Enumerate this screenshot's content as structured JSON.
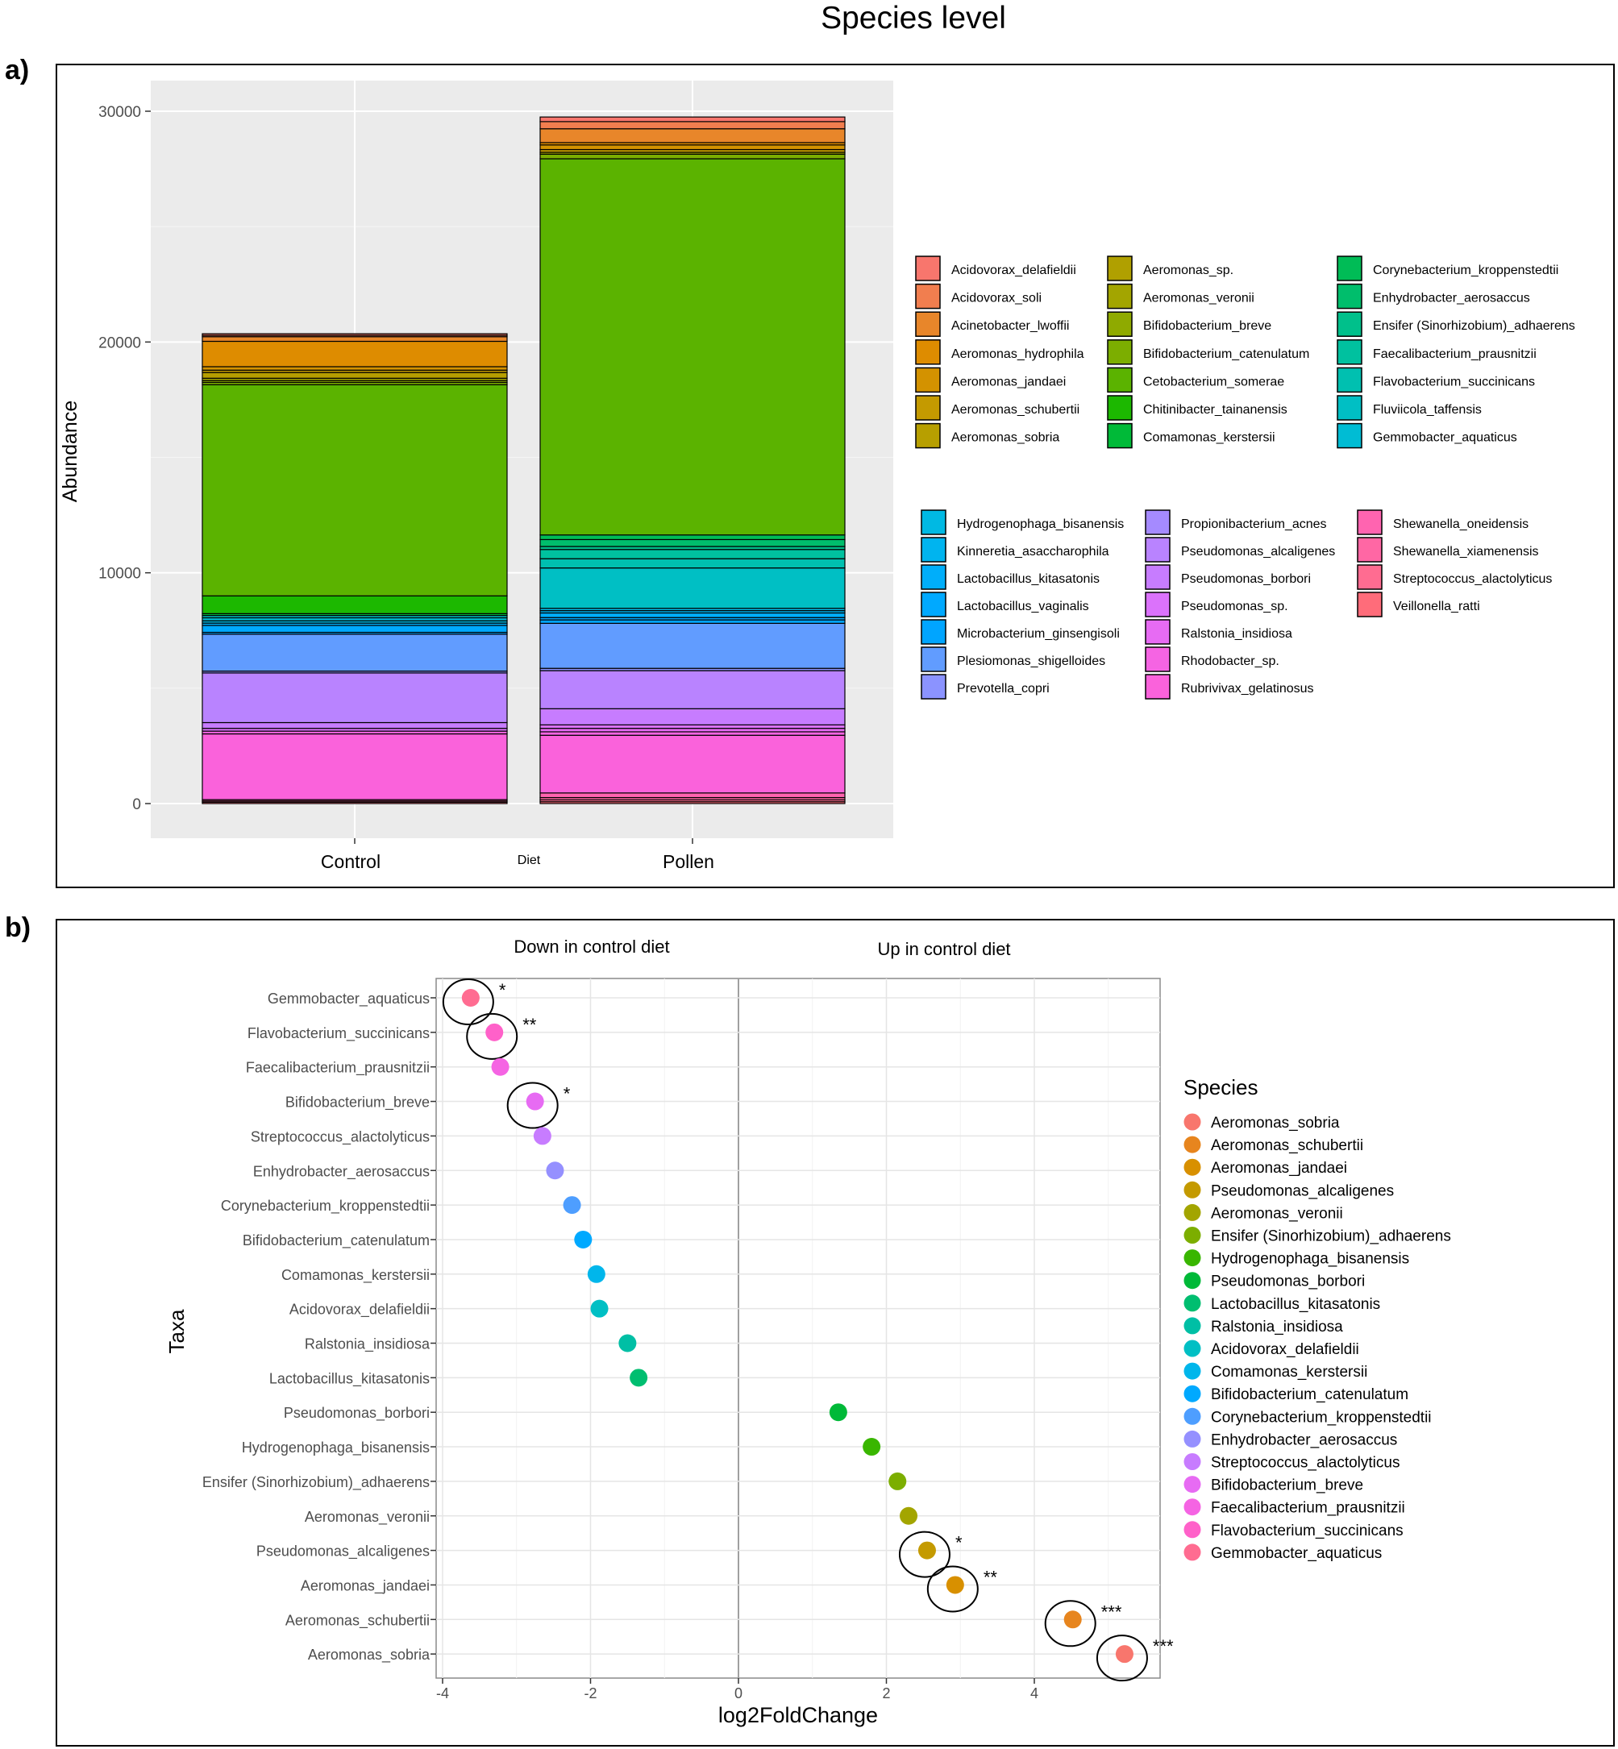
{
  "figure": {
    "title": "Species level",
    "panel_a_label": "a)",
    "panel_b_label": "b)"
  },
  "chart_data": [
    {
      "type": "bar",
      "stacked": true,
      "panel": "a",
      "title": "",
      "xlabel": "Diet",
      "ylabel": "Abundance",
      "ylim": [
        0,
        31000
      ],
      "yticks": [
        "0",
        "10000",
        "20000",
        "30000"
      ],
      "categories": [
        "Control",
        "Pollen"
      ],
      "species": [
        {
          "name": "Acidovorax_delafieldii",
          "color": "#F8766D"
        },
        {
          "name": "Acidovorax_soli",
          "color": "#F17E4F"
        },
        {
          "name": "Acinetobacter_lwoffii",
          "color": "#E8862A"
        },
        {
          "name": "Aeromonas_hydrophila",
          "color": "#DE8C00"
        },
        {
          "name": "Aeromonas_jandaei",
          "color": "#D39200"
        },
        {
          "name": "Aeromonas_schubertii",
          "color": "#C49A00"
        },
        {
          "name": "Aeromonas_sobria",
          "color": "#B79F00"
        },
        {
          "name": "Aeromonas_sp.",
          "color": "#B0A000"
        },
        {
          "name": "Aeromonas_veronii",
          "color": "#A3A500"
        },
        {
          "name": "Bifidobacterium_breve",
          "color": "#8FAA00"
        },
        {
          "name": "Bifidobacterium_catenulatum",
          "color": "#7CAE00"
        },
        {
          "name": "Cetobacterium_somerae",
          "color": "#5BB300"
        },
        {
          "name": "Chitinibacter_tainanensis",
          "color": "#1CB800"
        },
        {
          "name": "Comamonas_kerstersii",
          "color": "#00BA38"
        },
        {
          "name": "Corynebacterium_kroppenstedtii",
          "color": "#00BC56"
        },
        {
          "name": "Enhydrobacter_aerosaccus",
          "color": "#00BE6C"
        },
        {
          "name": "Ensifer (Sinorhizobium)_adhaerens",
          "color": "#00C08B"
        },
        {
          "name": "Faecalibacterium_prausnitzii",
          "color": "#00C19F"
        },
        {
          "name": "Flavobacterium_succinicans",
          "color": "#00C0B0"
        },
        {
          "name": "Fluviicola_taffensis",
          "color": "#00BFC4"
        },
        {
          "name": "Gemmobacter_aquaticus",
          "color": "#00BCD4"
        },
        {
          "name": "Hydrogenophaga_bisanensis",
          "color": "#00B9E3"
        },
        {
          "name": "Kinneretia_asaccharophila",
          "color": "#00B4EF"
        },
        {
          "name": "Lactobacillus_kitasatonis",
          "color": "#00AEFA"
        },
        {
          "name": "Lactobacillus_vaginalis",
          "color": "#00A9FF"
        },
        {
          "name": "Microbacterium_ginsengisoli",
          "color": "#00A5FF"
        },
        {
          "name": "Plesiomonas_shigelloides",
          "color": "#619CFF"
        },
        {
          "name": "Prevotella_copri",
          "color": "#8B93FF"
        },
        {
          "name": "Propionibacterium_acnes",
          "color": "#A58AFF"
        },
        {
          "name": "Pseudomonas_alcaligenes",
          "color": "#B983FF"
        },
        {
          "name": "Pseudomonas_borbori",
          "color": "#C77CFF"
        },
        {
          "name": "Pseudomonas_sp.",
          "color": "#DB72FB"
        },
        {
          "name": "Ralstonia_insidiosa",
          "color": "#E76BF3"
        },
        {
          "name": "Rhodobacter_sp.",
          "color": "#F564E3"
        },
        {
          "name": "Rubrivivax_gelatinosus",
          "color": "#FA62DB"
        },
        {
          "name": "Shewanella_oneidensis",
          "color": "#FF64B0"
        },
        {
          "name": "Shewanella_xiamenensis",
          "color": "#FF67A4"
        },
        {
          "name": "Streptococcus_alactolyticus",
          "color": "#FF6C91"
        },
        {
          "name": "Veillonella_ratti",
          "color": "#FF6C7A"
        }
      ],
      "series": [
        {
          "name": "Control",
          "segments": [
            {
              "species": "Veillonella_ratti",
              "value": 60
            },
            {
              "species": "Streptococcus_alactolyticus",
              "value": 50
            },
            {
              "species": "Shewanella_xiamenensis",
              "value": 60
            },
            {
              "species": "Rubrivivax_gelatinosus",
              "value": 2850
            },
            {
              "species": "Rhodobacter_sp.",
              "value": 120
            },
            {
              "species": "Pseudomonas_sp.",
              "value": 120
            },
            {
              "species": "Pseudomonas_borbori",
              "value": 250
            },
            {
              "species": "Pseudomonas_alcaligenes",
              "value": 2150
            },
            {
              "species": "Prevotella_copri",
              "value": 80
            },
            {
              "species": "Plesiomonas_shigelloides",
              "value": 1600
            },
            {
              "species": "Microbacterium_ginsengisoli",
              "value": 80
            },
            {
              "species": "Lactobacillus_vaginalis",
              "value": 300
            },
            {
              "species": "Lactobacillus_kitasatonis",
              "value": 100
            },
            {
              "species": "Hydrogenophaga_bisanensis",
              "value": 100
            },
            {
              "species": "Gemmobacter_aquaticus",
              "value": 130
            },
            {
              "species": "Fluviicola_taffensis",
              "value": 100
            },
            {
              "species": "Comamonas_kerstersii",
              "value": 80
            },
            {
              "species": "Chitinibacter_tainanensis",
              "value": 770
            },
            {
              "species": "Cetobacterium_somerae",
              "value": 9150
            },
            {
              "species": "Bifidobacterium_catenulatum",
              "value": 100
            },
            {
              "species": "Bifidobacterium_breve",
              "value": 80
            },
            {
              "species": "Aeromonas_veronii",
              "value": 100
            },
            {
              "species": "Aeromonas_sobria",
              "value": 250
            },
            {
              "species": "Aeromonas_schubertii",
              "value": 100
            },
            {
              "species": "Aeromonas_jandaei",
              "value": 150
            },
            {
              "species": "Aeromonas_hydrophila",
              "value": 1100
            },
            {
              "species": "Acinetobacter_lwoffii",
              "value": 200
            },
            {
              "species": "Acidovorax_soli",
              "value": 60
            },
            {
              "species": "Acidovorax_delafieldii",
              "value": 70
            }
          ]
        },
        {
          "name": "Pollen",
          "segments": [
            {
              "species": "Veillonella_ratti",
              "value": 80
            },
            {
              "species": "Streptococcus_alactolyticus",
              "value": 80
            },
            {
              "species": "Shewanella_xiamenensis",
              "value": 100
            },
            {
              "species": "Shewanella_oneidensis",
              "value": 200
            },
            {
              "species": "Rubrivivax_gelatinosus",
              "value": 2500
            },
            {
              "species": "Rhodobacter_sp.",
              "value": 150
            },
            {
              "species": "Ralstonia_insidiosa",
              "value": 150
            },
            {
              "species": "Pseudomonas_sp.",
              "value": 150
            },
            {
              "species": "Pseudomonas_borbori",
              "value": 700
            },
            {
              "species": "Pseudomonas_alcaligenes",
              "value": 1650
            },
            {
              "species": "Prevotella_copri",
              "value": 100
            },
            {
              "species": "Plesiomonas_shigelloides",
              "value": 1950
            },
            {
              "species": "Microbacterium_ginsengisoli",
              "value": 150
            },
            {
              "species": "Lactobacillus_vaginalis",
              "value": 100
            },
            {
              "species": "Lactobacillus_kitasatonis",
              "value": 200
            },
            {
              "species": "Kinneretia_asaccharophila",
              "value": 100
            },
            {
              "species": "Hydrogenophaga_bisanensis",
              "value": 100
            },
            {
              "species": "Fluviicola_taffensis",
              "value": 1750
            },
            {
              "species": "Flavobacterium_succinicans",
              "value": 400
            },
            {
              "species": "Faecalibacterium_prausnitzii",
              "value": 400
            },
            {
              "species": "Ensifer (Sinorhizobium)_adhaerens",
              "value": 130
            },
            {
              "species": "Enhydrobacter_aerosaccus",
              "value": 300
            },
            {
              "species": "Corynebacterium_kroppenstedtii",
              "value": 200
            },
            {
              "species": "Cetobacterium_somerae",
              "value": 16300
            },
            {
              "species": "Bifidobacterium_catenulatum",
              "value": 200
            },
            {
              "species": "Aeromonas_veronii",
              "value": 80
            },
            {
              "species": "Aeromonas_schubertii",
              "value": 120
            },
            {
              "species": "Aeromonas_jandaei",
              "value": 200
            },
            {
              "species": "Aeromonas_hydrophila",
              "value": 100
            },
            {
              "species": "Acinetobacter_lwoffii",
              "value": 600
            },
            {
              "species": "Acidovorax_soli",
              "value": 310
            },
            {
              "species": "Acidovorax_delafieldii",
              "value": 200
            }
          ]
        }
      ],
      "legend_position": "right"
    },
    {
      "type": "scatter",
      "panel": "b",
      "title": "",
      "xlabel": "log2FoldChange",
      "ylabel": "Taxa",
      "xlim": [
        -4,
        5.7
      ],
      "xticks": [
        "-4",
        "-2",
        "0",
        "2",
        "4"
      ],
      "group_labels": [
        "Down in control diet",
        "Up in control diet"
      ],
      "legend_title": "Species",
      "legend_position": "right",
      "points": [
        {
          "taxon": "Gemmobacter_aquaticus",
          "x": -3.62,
          "color": "#FF6C91",
          "sig": "*"
        },
        {
          "taxon": "Flavobacterium_succinicans",
          "x": -3.3,
          "color": "#FF61C9",
          "sig": "**"
        },
        {
          "taxon": "Faecalibacterium_prausnitzii",
          "x": -3.22,
          "color": "#F564E3",
          "sig": ""
        },
        {
          "taxon": "Bifidobacterium_breve",
          "x": -2.75,
          "color": "#E76BF3",
          "sig": "*"
        },
        {
          "taxon": "Streptococcus_alactolyticus",
          "x": -2.65,
          "color": "#C77CFF",
          "sig": ""
        },
        {
          "taxon": "Enhydrobacter_aerosaccus",
          "x": -2.48,
          "color": "#9590FF",
          "sig": ""
        },
        {
          "taxon": "Corynebacterium_kroppenstedtii",
          "x": -2.25,
          "color": "#4E9EFF",
          "sig": ""
        },
        {
          "taxon": "Bifidobacterium_catenulatum",
          "x": -2.1,
          "color": "#00A9FF",
          "sig": ""
        },
        {
          "taxon": "Comamonas_kerstersii",
          "x": -1.92,
          "color": "#00B6EB",
          "sig": ""
        },
        {
          "taxon": "Acidovorax_delafieldii",
          "x": -1.88,
          "color": "#00BFC4",
          "sig": ""
        },
        {
          "taxon": "Ralstonia_insidiosa",
          "x": -1.5,
          "color": "#00BFA5",
          "sig": ""
        },
        {
          "taxon": "Lactobacillus_kitasatonis",
          "x": -1.35,
          "color": "#00BE70",
          "sig": ""
        },
        {
          "taxon": "Pseudomonas_borbori",
          "x": 1.35,
          "color": "#00B938",
          "sig": ""
        },
        {
          "taxon": "Hydrogenophaga_bisanensis",
          "x": 1.8,
          "color": "#39B600",
          "sig": ""
        },
        {
          "taxon": "Ensifer (Sinorhizobium)_adhaerens",
          "x": 2.15,
          "color": "#7CAE00",
          "sig": ""
        },
        {
          "taxon": "Aeromonas_veronii",
          "x": 2.3,
          "color": "#A3A500",
          "sig": ""
        },
        {
          "taxon": "Pseudomonas_alcaligenes",
          "x": 2.55,
          "color": "#C49A00",
          "sig": "*"
        },
        {
          "taxon": "Aeromonas_jandaei",
          "x": 2.93,
          "color": "#D89000",
          "sig": "**"
        },
        {
          "taxon": "Aeromonas_schubertii",
          "x": 4.52,
          "color": "#E7851E",
          "sig": "***"
        },
        {
          "taxon": "Aeromonas_sobria",
          "x": 5.22,
          "color": "#F8766D",
          "sig": "***"
        }
      ],
      "legend": [
        {
          "name": "Aeromonas_sobria",
          "color": "#F8766D"
        },
        {
          "name": "Aeromonas_schubertii",
          "color": "#E7851E"
        },
        {
          "name": "Aeromonas_jandaei",
          "color": "#D89000"
        },
        {
          "name": "Pseudomonas_alcaligenes",
          "color": "#C49A00"
        },
        {
          "name": "Aeromonas_veronii",
          "color": "#A3A500"
        },
        {
          "name": "Ensifer (Sinorhizobium)_adhaerens",
          "color": "#7CAE00"
        },
        {
          "name": "Hydrogenophaga_bisanensis",
          "color": "#39B600"
        },
        {
          "name": "Pseudomonas_borbori",
          "color": "#00B938"
        },
        {
          "name": "Lactobacillus_kitasatonis",
          "color": "#00BE70"
        },
        {
          "name": "Ralstonia_insidiosa",
          "color": "#00BFA5"
        },
        {
          "name": "Acidovorax_delafieldii",
          "color": "#00BFC4"
        },
        {
          "name": "Comamonas_kerstersii",
          "color": "#00B6EB"
        },
        {
          "name": "Bifidobacterium_catenulatum",
          "color": "#00A9FF"
        },
        {
          "name": "Corynebacterium_kroppenstedtii",
          "color": "#4E9EFF"
        },
        {
          "name": "Enhydrobacter_aerosaccus",
          "color": "#9590FF"
        },
        {
          "name": "Streptococcus_alactolyticus",
          "color": "#C77CFF"
        },
        {
          "name": "Bifidobacterium_breve",
          "color": "#E76BF3"
        },
        {
          "name": "Faecalibacterium_prausnitzii",
          "color": "#F564E3"
        },
        {
          "name": "Flavobacterium_succinicans",
          "color": "#FF61C9"
        },
        {
          "name": "Gemmobacter_aquaticus",
          "color": "#FF6C91"
        }
      ]
    }
  ]
}
